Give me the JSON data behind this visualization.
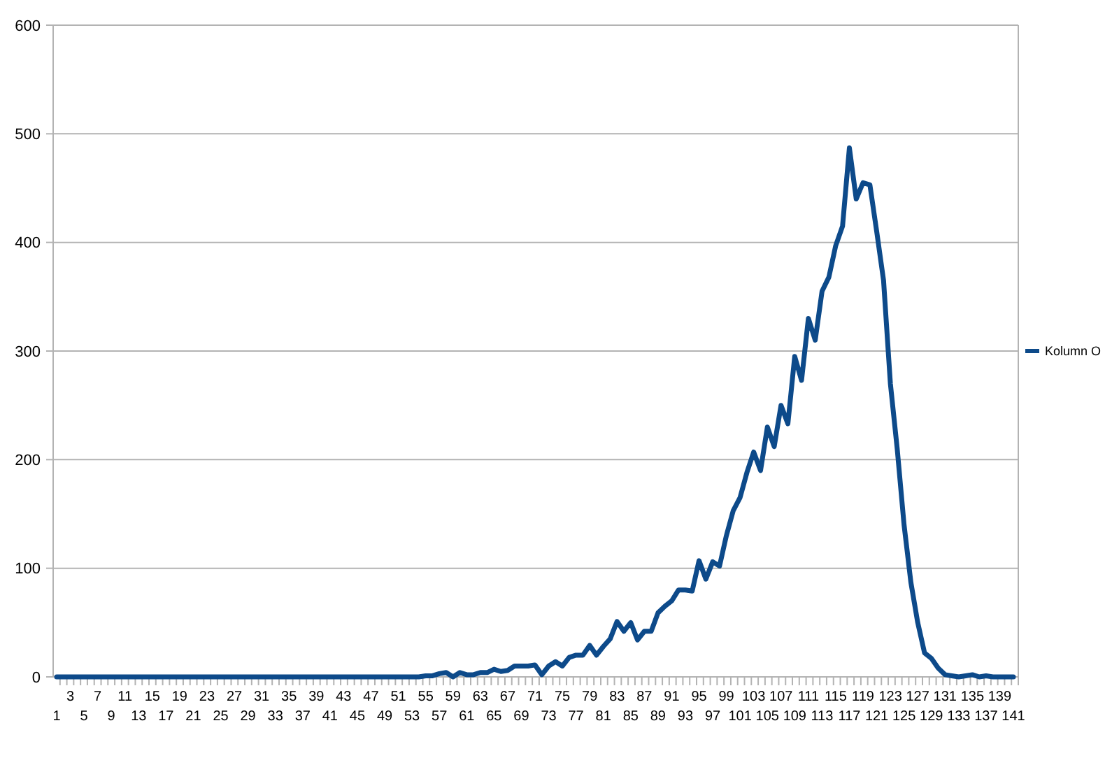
{
  "chart_data": {
    "type": "line",
    "categories": [
      "1",
      null,
      "3",
      null,
      "5",
      null,
      "7",
      null,
      "9",
      null,
      "11",
      null,
      "13",
      null,
      "15",
      null,
      "17",
      null,
      "19",
      null,
      "21",
      null,
      "23",
      null,
      "25",
      null,
      "27",
      null,
      "29",
      null,
      "31",
      null,
      "33",
      null,
      "35",
      null,
      "37",
      null,
      "39",
      null,
      "41",
      null,
      "43",
      null,
      "45",
      null,
      "47",
      null,
      "49",
      null,
      "51",
      null,
      "53",
      null,
      "55",
      null,
      "57",
      null,
      "59",
      null,
      "61",
      null,
      "63",
      null,
      "65",
      null,
      "67",
      null,
      "69",
      null,
      "71",
      null,
      "73",
      null,
      "75",
      null,
      "77",
      null,
      "79",
      null,
      "81",
      null,
      "83",
      null,
      "85",
      null,
      "87",
      null,
      "89",
      null,
      "91",
      null,
      "93",
      null,
      "95",
      null,
      "97",
      null,
      "99",
      null,
      "101",
      null,
      "103",
      null,
      "105",
      null,
      "107",
      null,
      "109",
      null,
      "111",
      null,
      "113",
      null,
      "115",
      null,
      "117",
      null,
      "119",
      null,
      "121",
      null,
      "123",
      null,
      "125",
      null,
      "127",
      null,
      "129",
      null,
      "131",
      null,
      "133",
      null,
      "135",
      null,
      "137",
      null,
      "139",
      null,
      "141"
    ],
    "series": [
      {
        "name": "Kolumn O",
        "color": "#0d4a8a",
        "values": [
          0,
          0,
          0,
          0,
          0,
          0,
          0,
          0,
          0,
          0,
          0,
          0,
          0,
          0,
          0,
          0,
          0,
          0,
          0,
          0,
          0,
          0,
          0,
          0,
          0,
          0,
          0,
          0,
          0,
          0,
          0,
          0,
          0,
          0,
          0,
          0,
          0,
          0,
          0,
          0,
          0,
          0,
          0,
          0,
          0,
          0,
          0,
          0,
          0,
          0,
          0,
          0,
          0,
          0,
          1,
          1,
          3,
          4,
          0,
          4,
          2,
          2,
          4,
          4,
          7,
          5,
          6,
          10,
          10,
          10,
          11,
          2,
          10,
          14,
          10,
          18,
          20,
          20,
          29,
          20,
          28,
          35,
          51,
          42,
          50,
          34,
          42,
          42,
          59,
          65,
          70,
          80,
          80,
          79,
          107,
          90,
          106,
          102,
          130,
          153,
          165,
          188,
          207,
          190,
          230,
          212,
          250,
          233,
          295,
          273,
          330,
          310,
          355,
          368,
          397,
          415,
          487,
          440,
          455,
          453,
          410,
          365,
          270,
          210,
          140,
          87,
          50,
          22,
          17,
          8,
          2,
          1,
          0,
          1,
          2,
          0,
          1,
          0,
          0,
          0,
          0
        ]
      }
    ],
    "ylim": [
      0,
      600
    ],
    "yticks": [
      0,
      100,
      200,
      300,
      400,
      500,
      600
    ],
    "grid": "y",
    "legend": "right",
    "marker": "none",
    "line_style": "solid"
  }
}
